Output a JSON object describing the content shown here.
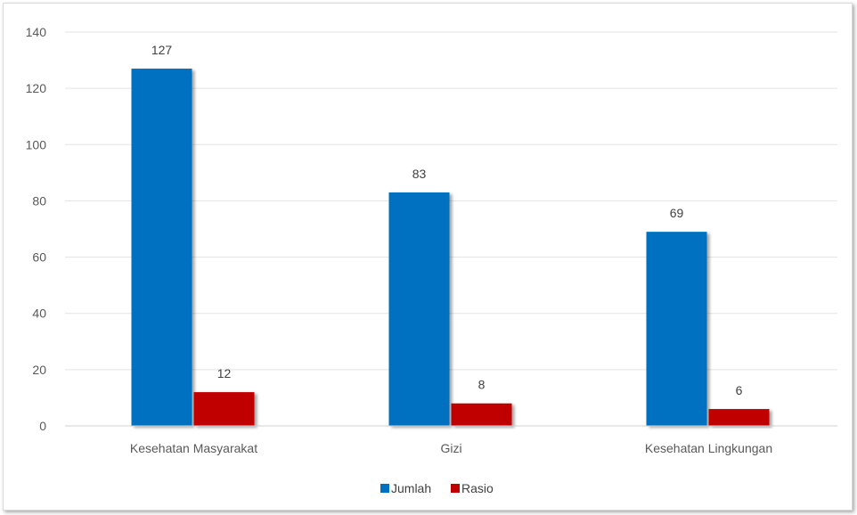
{
  "chart_data": {
    "type": "bar",
    "categories": [
      "Kesehatan Masyarakat",
      "Gizi",
      "Kesehatan Lingkungan"
    ],
    "series": [
      {
        "name": "Jumlah",
        "values": [
          127,
          83,
          69
        ],
        "color": "#0070c0"
      },
      {
        "name": "Rasio",
        "values": [
          12,
          8,
          6
        ],
        "color": "#c00000"
      }
    ],
    "ylim": [
      0,
      140
    ],
    "yticks": [
      0,
      20,
      40,
      60,
      80,
      100,
      120,
      140
    ],
    "grid": true,
    "legend": "bottom-center",
    "data_labels": true
  }
}
